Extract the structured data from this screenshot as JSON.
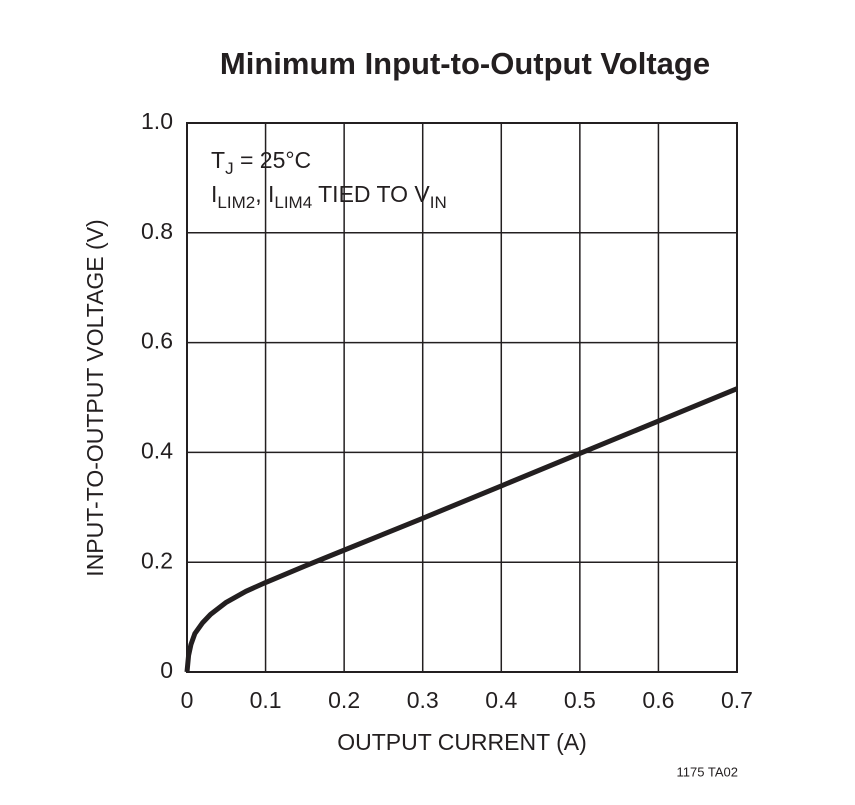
{
  "chart_data": {
    "type": "line",
    "title": "Minimum Input-to-Output Voltage",
    "x_label": "OUTPUT CURRENT (A)",
    "y_label": "INPUT-TO-OUTPUT VOLTAGE (V)",
    "annotation": [
      [
        {
          "text": "T"
        },
        {
          "sub": "J"
        },
        {
          "text": " = 25°C"
        }
      ],
      [
        {
          "text": "I"
        },
        {
          "sub": "LIM2"
        },
        {
          "text": ", I"
        },
        {
          "sub": "LIM4"
        },
        {
          "text": " TIED TO V"
        },
        {
          "sub": "IN"
        }
      ]
    ],
    "footnote": "1175 TA02",
    "x": [
      0,
      0.002,
      0.005,
      0.01,
      0.02,
      0.03,
      0.05,
      0.075,
      0.1,
      0.15,
      0.2,
      0.3,
      0.4,
      0.5,
      0.6,
      0.7
    ],
    "series": [
      {
        "color": "#231f20",
        "values": [
          0,
          0.03,
          0.05,
          0.07,
          0.09,
          0.105,
          0.127,
          0.147,
          0.163,
          0.193,
          0.222,
          0.28,
          0.339,
          0.398,
          0.457,
          0.516
        ]
      }
    ],
    "xlim": [
      0,
      0.7
    ],
    "xticks": [
      0,
      0.1,
      0.2,
      0.3,
      0.4,
      0.5,
      0.6,
      0.7
    ],
    "ylim": [
      0,
      1
    ],
    "yticks": [
      0,
      0.2,
      0.4,
      0.6,
      0.8,
      {
        "value": 1,
        "label": "1.0"
      }
    ],
    "grid": true
  }
}
